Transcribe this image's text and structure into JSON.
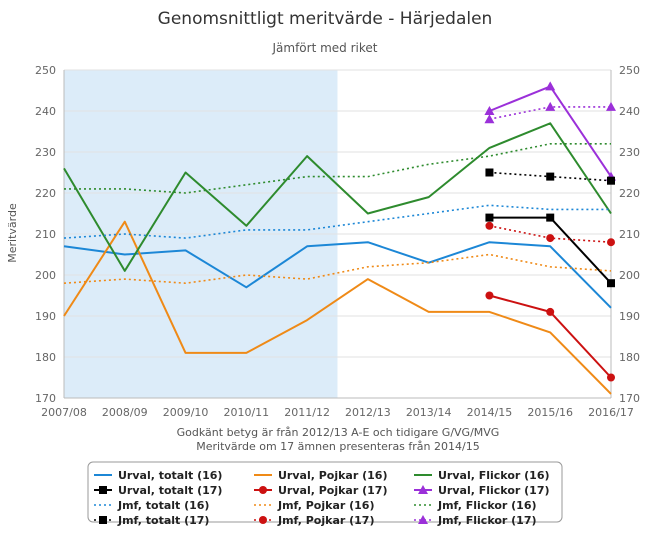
{
  "chart_data": {
    "type": "line",
    "title": "Genomsnittligt meritvärde - Härjedalen",
    "subtitle": "Jämfört med riket",
    "ylabel": "Meritvärde",
    "xlabel_lines": [
      "Godkänt betyg är från 2012/13 A-E och tidigare G/VG/MVG",
      "Meritvärde om 17 ämnen presenteras från 2014/15"
    ],
    "categories": [
      "2007/08",
      "2008/09",
      "2009/10",
      "2010/11",
      "2011/12",
      "2012/13",
      "2013/14",
      "2014/15",
      "2015/16",
      "2016/17"
    ],
    "ylim": [
      170,
      250
    ],
    "yticks": [
      170,
      180,
      190,
      200,
      210,
      220,
      230,
      240,
      250
    ],
    "shaded_band": {
      "from": "2007/08",
      "to": "2011/12",
      "color": "#dcecf9"
    },
    "legend_position": "bottom",
    "series": [
      {
        "name": "Urval, totalt (16)",
        "style": "solid",
        "marker": "none",
        "color": "#1c87d6",
        "values": [
          207,
          205,
          206,
          197,
          207,
          208,
          203,
          208,
          207,
          192
        ]
      },
      {
        "name": "Urval, Pojkar (16)",
        "style": "solid",
        "marker": "none",
        "color": "#ef8a17",
        "values": [
          190,
          213,
          181,
          181,
          189,
          199,
          191,
          191,
          186,
          171
        ]
      },
      {
        "name": "Urval, Flickor (16)",
        "style": "solid",
        "marker": "none",
        "color": "#2e8b2e",
        "values": [
          226,
          201,
          225,
          212,
          229,
          215,
          219,
          231,
          237,
          215
        ]
      },
      {
        "name": "Urval, totalt (17)",
        "style": "solid",
        "marker": "square",
        "color": "#000000",
        "values": [
          null,
          null,
          null,
          null,
          null,
          null,
          null,
          214,
          214,
          198
        ]
      },
      {
        "name": "Urval, Pojkar (17)",
        "style": "solid",
        "marker": "circle",
        "color": "#cc1111",
        "values": [
          null,
          null,
          null,
          null,
          null,
          null,
          null,
          195,
          191,
          175
        ]
      },
      {
        "name": "Urval, Flickor (17)",
        "style": "solid",
        "marker": "triangle",
        "color": "#9b30d9",
        "values": [
          null,
          null,
          null,
          null,
          null,
          null,
          null,
          240,
          246,
          224
        ]
      },
      {
        "name": "Jmf, totalt (16)",
        "style": "dotted",
        "marker": "none",
        "color": "#1c87d6",
        "values": [
          209,
          210,
          209,
          211,
          211,
          213,
          215,
          217,
          216,
          216
        ]
      },
      {
        "name": "Jmf, Pojkar (16)",
        "style": "dotted",
        "marker": "none",
        "color": "#ef8a17",
        "values": [
          198,
          199,
          198,
          200,
          199,
          202,
          203,
          205,
          202,
          201
        ]
      },
      {
        "name": "Jmf, Flickor (16)",
        "style": "dotted",
        "marker": "none",
        "color": "#2e8b2e",
        "values": [
          221,
          221,
          220,
          222,
          224,
          224,
          227,
          229,
          232,
          232
        ]
      },
      {
        "name": "Jmf, totalt (17)",
        "style": "dotted",
        "marker": "square",
        "color": "#000000",
        "values": [
          null,
          null,
          null,
          null,
          null,
          null,
          null,
          225,
          224,
          223
        ]
      },
      {
        "name": "Jmf, Pojkar (17)",
        "style": "dotted",
        "marker": "circle",
        "color": "#cc1111",
        "values": [
          null,
          null,
          null,
          null,
          null,
          null,
          null,
          212,
          209,
          208
        ]
      },
      {
        "name": "Jmf, Flickor (17)",
        "style": "dotted",
        "marker": "triangle",
        "color": "#9b30d9",
        "values": [
          null,
          null,
          null,
          null,
          null,
          null,
          null,
          238,
          241,
          241
        ]
      }
    ]
  }
}
